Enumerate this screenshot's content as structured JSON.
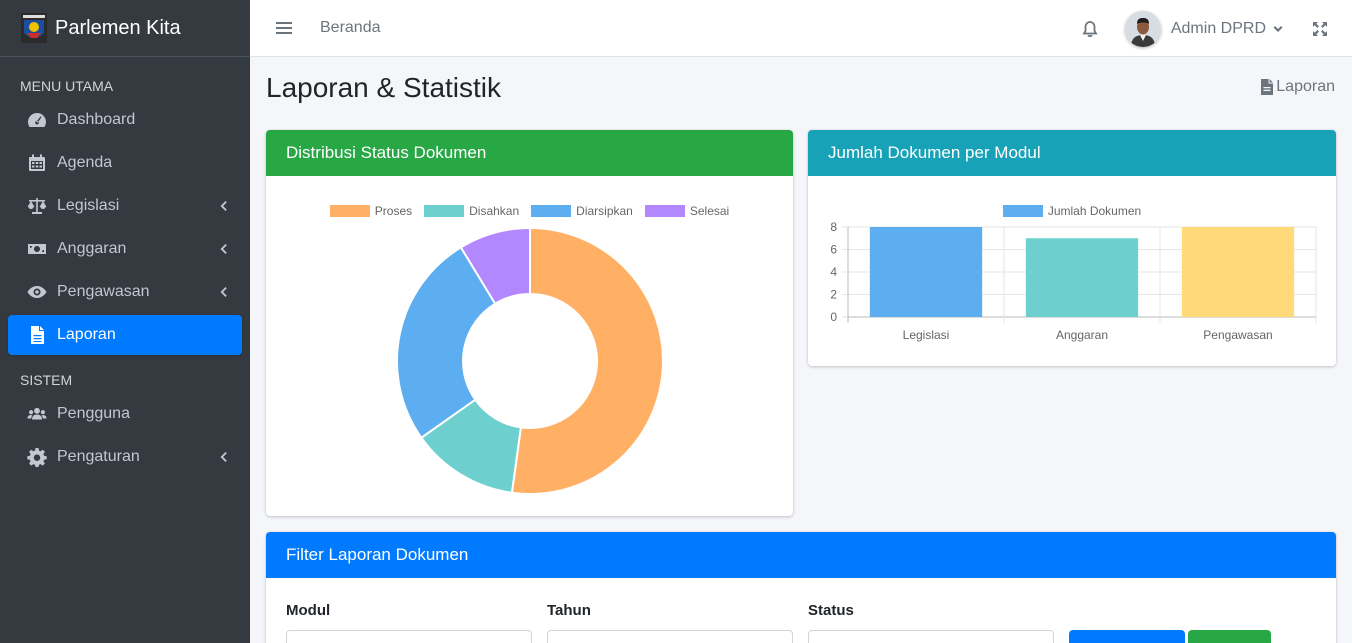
{
  "sidebar": {
    "brand": "Parlemen Kita",
    "header_main": "MENU UTAMA",
    "header_system": "SISTEM",
    "items": [
      {
        "label": "Dashboard"
      },
      {
        "label": "Agenda"
      },
      {
        "label": "Legislasi"
      },
      {
        "label": "Anggaran"
      },
      {
        "label": "Pengawasan"
      },
      {
        "label": "Laporan"
      },
      {
        "label": "Pengguna"
      },
      {
        "label": "Pengaturan"
      }
    ]
  },
  "topbar": {
    "home_link": "Beranda",
    "user_name": "Admin DPRD"
  },
  "page": {
    "title": "Laporan & Statistik",
    "breadcrumb": "Laporan"
  },
  "status_card": {
    "title": "Distribusi Status Dokumen"
  },
  "module_card": {
    "title": "Jumlah Dokumen per Modul"
  },
  "filter_card": {
    "title": "Filter Laporan Dokumen",
    "fields": [
      {
        "label": "Modul"
      },
      {
        "label": "Tahun"
      },
      {
        "label": "Status"
      }
    ]
  },
  "colors": {
    "sidebar_bg": "#343a40",
    "active": "#007bff",
    "green": "#28a745",
    "cyan": "#17a2b8"
  },
  "chart_data": [
    {
      "type": "pie",
      "categories": [
        "Proses",
        "Disahkan",
        "Diarsipkan",
        "Selesai"
      ],
      "values": [
        12,
        3,
        6,
        2
      ],
      "colors": [
        "#ffb064",
        "#6ecfcf",
        "#5daef0",
        "#b388ff"
      ],
      "legend": "top"
    },
    {
      "type": "bar",
      "categories": [
        "Legislasi",
        "Anggaran",
        "Pengawasan"
      ],
      "series": [
        {
          "name": "Jumlah Dokumen",
          "values": [
            8,
            7,
            8
          ]
        }
      ],
      "colors": [
        "#5daef0",
        "#6ecfcf",
        "#ffd97a"
      ],
      "ylim": [
        0,
        8
      ],
      "yticks": [
        "0",
        "2",
        "4",
        "6",
        "8"
      ],
      "grid": true,
      "legend": "top"
    }
  ]
}
